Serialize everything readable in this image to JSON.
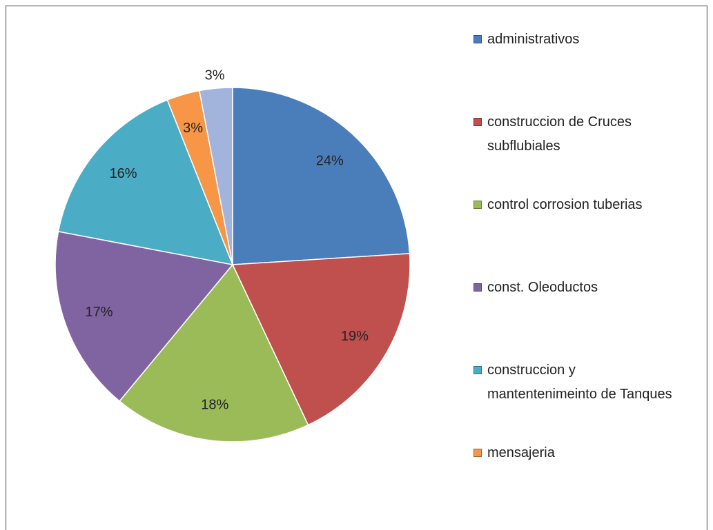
{
  "chart_data": {
    "type": "pie",
    "categories": [
      "administrativos",
      "construccion de Cruces subflubiales",
      "control corrosion tuberias",
      "const. Oleoductos",
      "construccion y mantentenimeinto de Tanques",
      "mensajeria",
      null
    ],
    "values": [
      24,
      19,
      18,
      17,
      16,
      3,
      3
    ],
    "value_labels": [
      "24%",
      "19%",
      "18%",
      "17%",
      "16%",
      "3%",
      "3%"
    ],
    "colors": [
      "#4a7ebb",
      "#c0504d",
      "#9bbb59",
      "#8064a2",
      "#4bacc6",
      "#f79646",
      "#a3b4dc"
    ],
    "legend": "right"
  }
}
